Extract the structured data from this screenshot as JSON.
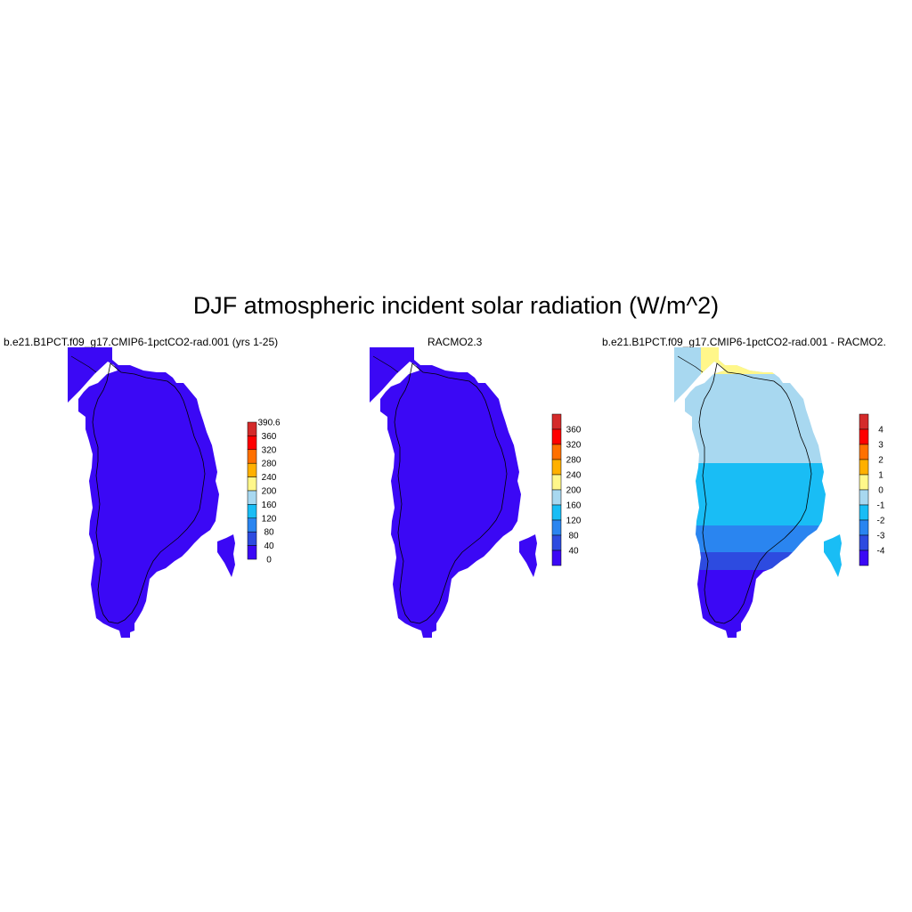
{
  "title": "DJF atmospheric incident solar radiation (W/m^2)",
  "panels": [
    {
      "title": "b.e21.B1PCT.f09_g17.CMIP6-1pctCO2-rad.001 (yrs 1-25)",
      "colorbar_labels": [
        "390.6",
        "360",
        "320",
        "280",
        "240",
        "200",
        "160",
        "120",
        "80",
        "40",
        "0"
      ],
      "colorbar_colors": [
        "#d42a2a",
        "#ff0000",
        "#ff7000",
        "#ffb000",
        "#fff78a",
        "#a8d8f0",
        "#19bdf5",
        "#2a85f0",
        "#2d4be0",
        "#3b08f5"
      ],
      "field_color": "#3b08f5"
    },
    {
      "title": "RACMO2.3",
      "colorbar_labels": [
        "360",
        "320",
        "280",
        "240",
        "200",
        "160",
        "120",
        "80",
        "40"
      ],
      "colorbar_colors": [
        "#d42a2a",
        "#ff0000",
        "#ff7000",
        "#ffb000",
        "#fff78a",
        "#a8d8f0",
        "#19bdf5",
        "#2a85f0",
        "#2d4be0",
        "#3b08f5"
      ],
      "field_color": "#3b08f5"
    },
    {
      "title": "b.e21.B1PCT.f09_g17.CMIP6-1pctCO2-rad.001 - RACMO2.",
      "colorbar_labels": [
        "4",
        "3",
        "2",
        "1",
        "0",
        "-1",
        "-2",
        "-3",
        "-4"
      ],
      "colorbar_colors": [
        "#d42a2a",
        "#ff0000",
        "#ff7000",
        "#ffb000",
        "#fff78a",
        "#a8d8f0",
        "#19bdf5",
        "#2a85f0",
        "#2d4be0",
        "#3b08f5"
      ]
    }
  ]
}
